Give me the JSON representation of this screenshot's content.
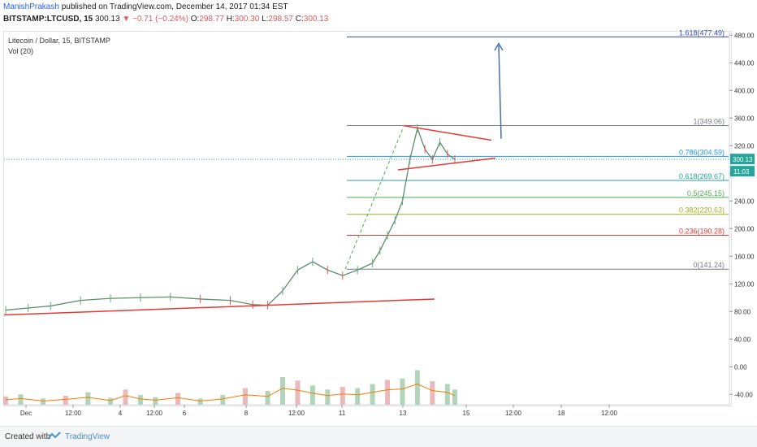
{
  "header": {
    "author": "ManishPrakash",
    "published": "published on TradingView.com, December 14, 2017 01:34 EST",
    "symbol": "BITSTAMP:LTCUSD, 15",
    "price": "300.13",
    "change": "−0.71 (−0.24%)",
    "o_label": "O:",
    "o_value": "298.77",
    "h_label": "H:",
    "h_value": "300.30",
    "l_label": "L:",
    "l_value": "298.57",
    "c_label": "C:",
    "c_value": "300.13"
  },
  "legend": {
    "title": "Litecoin / Dollar, 15, BITSTAMP",
    "volume": "Vol (20)"
  },
  "footer": {
    "created_with": "Created with",
    "brand": "TradingView"
  },
  "colors": {
    "up": "#6aa67a",
    "down": "#e05a5a",
    "trend": "#e53935",
    "arrow": "#4a6fa5",
    "volume_ma": "#f57c00"
  },
  "chart_data": {
    "type": "line",
    "y_axis": {
      "ticks": [
        "480.00",
        "440.00",
        "400.00",
        "360.00",
        "320.00",
        "280.00",
        "240.00",
        "200.00",
        "160.00",
        "120.00",
        "80.00",
        "40.00",
        "0.00",
        "-40.00"
      ],
      "range": [
        -55,
        485
      ]
    },
    "x_axis": {
      "ticks": [
        "Dec",
        "12:00",
        "4",
        "12:00",
        "6",
        "8",
        "12:00",
        "11",
        "13",
        "15",
        "12:00",
        "18",
        "12:00"
      ]
    },
    "last_price_tag": "300.13",
    "countdown_tag": "11:03",
    "fibonacci": [
      {
        "label": "1.618(477.49)",
        "value": 477.49,
        "color": "#3949ab"
      },
      {
        "label": "1(349.06)",
        "value": 349.06,
        "color": "#787b86"
      },
      {
        "label": "0.786(304.59)",
        "value": 304.59,
        "color": "#2196f3"
      },
      {
        "label": "0.618(269.67)",
        "value": 269.67,
        "color": "#26a69a"
      },
      {
        "label": "0.5(245.15)",
        "value": 245.15,
        "color": "#4caf50"
      },
      {
        "label": "0.382(220.63)",
        "value": 220.63,
        "color": "#9bb31c"
      },
      {
        "label": "0.236(190.28)",
        "value": 190.28,
        "color": "#e53935"
      },
      {
        "label": "0(141.24)",
        "value": 141.24,
        "color": "#787b86"
      }
    ],
    "price_series": [
      [
        0,
        82
      ],
      [
        0.03,
        85
      ],
      [
        0.06,
        88
      ],
      [
        0.1,
        96
      ],
      [
        0.14,
        99
      ],
      [
        0.18,
        100
      ],
      [
        0.22,
        101
      ],
      [
        0.26,
        98
      ],
      [
        0.3,
        96
      ],
      [
        0.33,
        90
      ],
      [
        0.35,
        89
      ],
      [
        0.37,
        110
      ],
      [
        0.39,
        140
      ],
      [
        0.41,
        152
      ],
      [
        0.43,
        140
      ],
      [
        0.45,
        132
      ],
      [
        0.47,
        140
      ],
      [
        0.49,
        150
      ],
      [
        0.5,
        168
      ],
      [
        0.51,
        190
      ],
      [
        0.52,
        212
      ],
      [
        0.53,
        240
      ],
      [
        0.54,
        300
      ],
      [
        0.55,
        345
      ],
      [
        0.56,
        315
      ],
      [
        0.57,
        300
      ],
      [
        0.58,
        325
      ],
      [
        0.59,
        308
      ],
      [
        0.6,
        300
      ]
    ],
    "volume_series": [
      [
        0,
        12
      ],
      [
        0.02,
        15
      ],
      [
        0.05,
        9
      ],
      [
        0.08,
        13
      ],
      [
        0.11,
        18
      ],
      [
        0.14,
        10
      ],
      [
        0.16,
        22
      ],
      [
        0.18,
        14
      ],
      [
        0.2,
        11
      ],
      [
        0.23,
        17
      ],
      [
        0.26,
        9
      ],
      [
        0.29,
        14
      ],
      [
        0.32,
        24
      ],
      [
        0.35,
        20
      ],
      [
        0.37,
        40
      ],
      [
        0.39,
        35
      ],
      [
        0.41,
        28
      ],
      [
        0.43,
        22
      ],
      [
        0.45,
        26
      ],
      [
        0.47,
        24
      ],
      [
        0.49,
        30
      ],
      [
        0.51,
        36
      ],
      [
        0.53,
        38
      ],
      [
        0.55,
        50
      ],
      [
        0.57,
        34
      ],
      [
        0.59,
        30
      ],
      [
        0.6,
        22
      ]
    ]
  }
}
